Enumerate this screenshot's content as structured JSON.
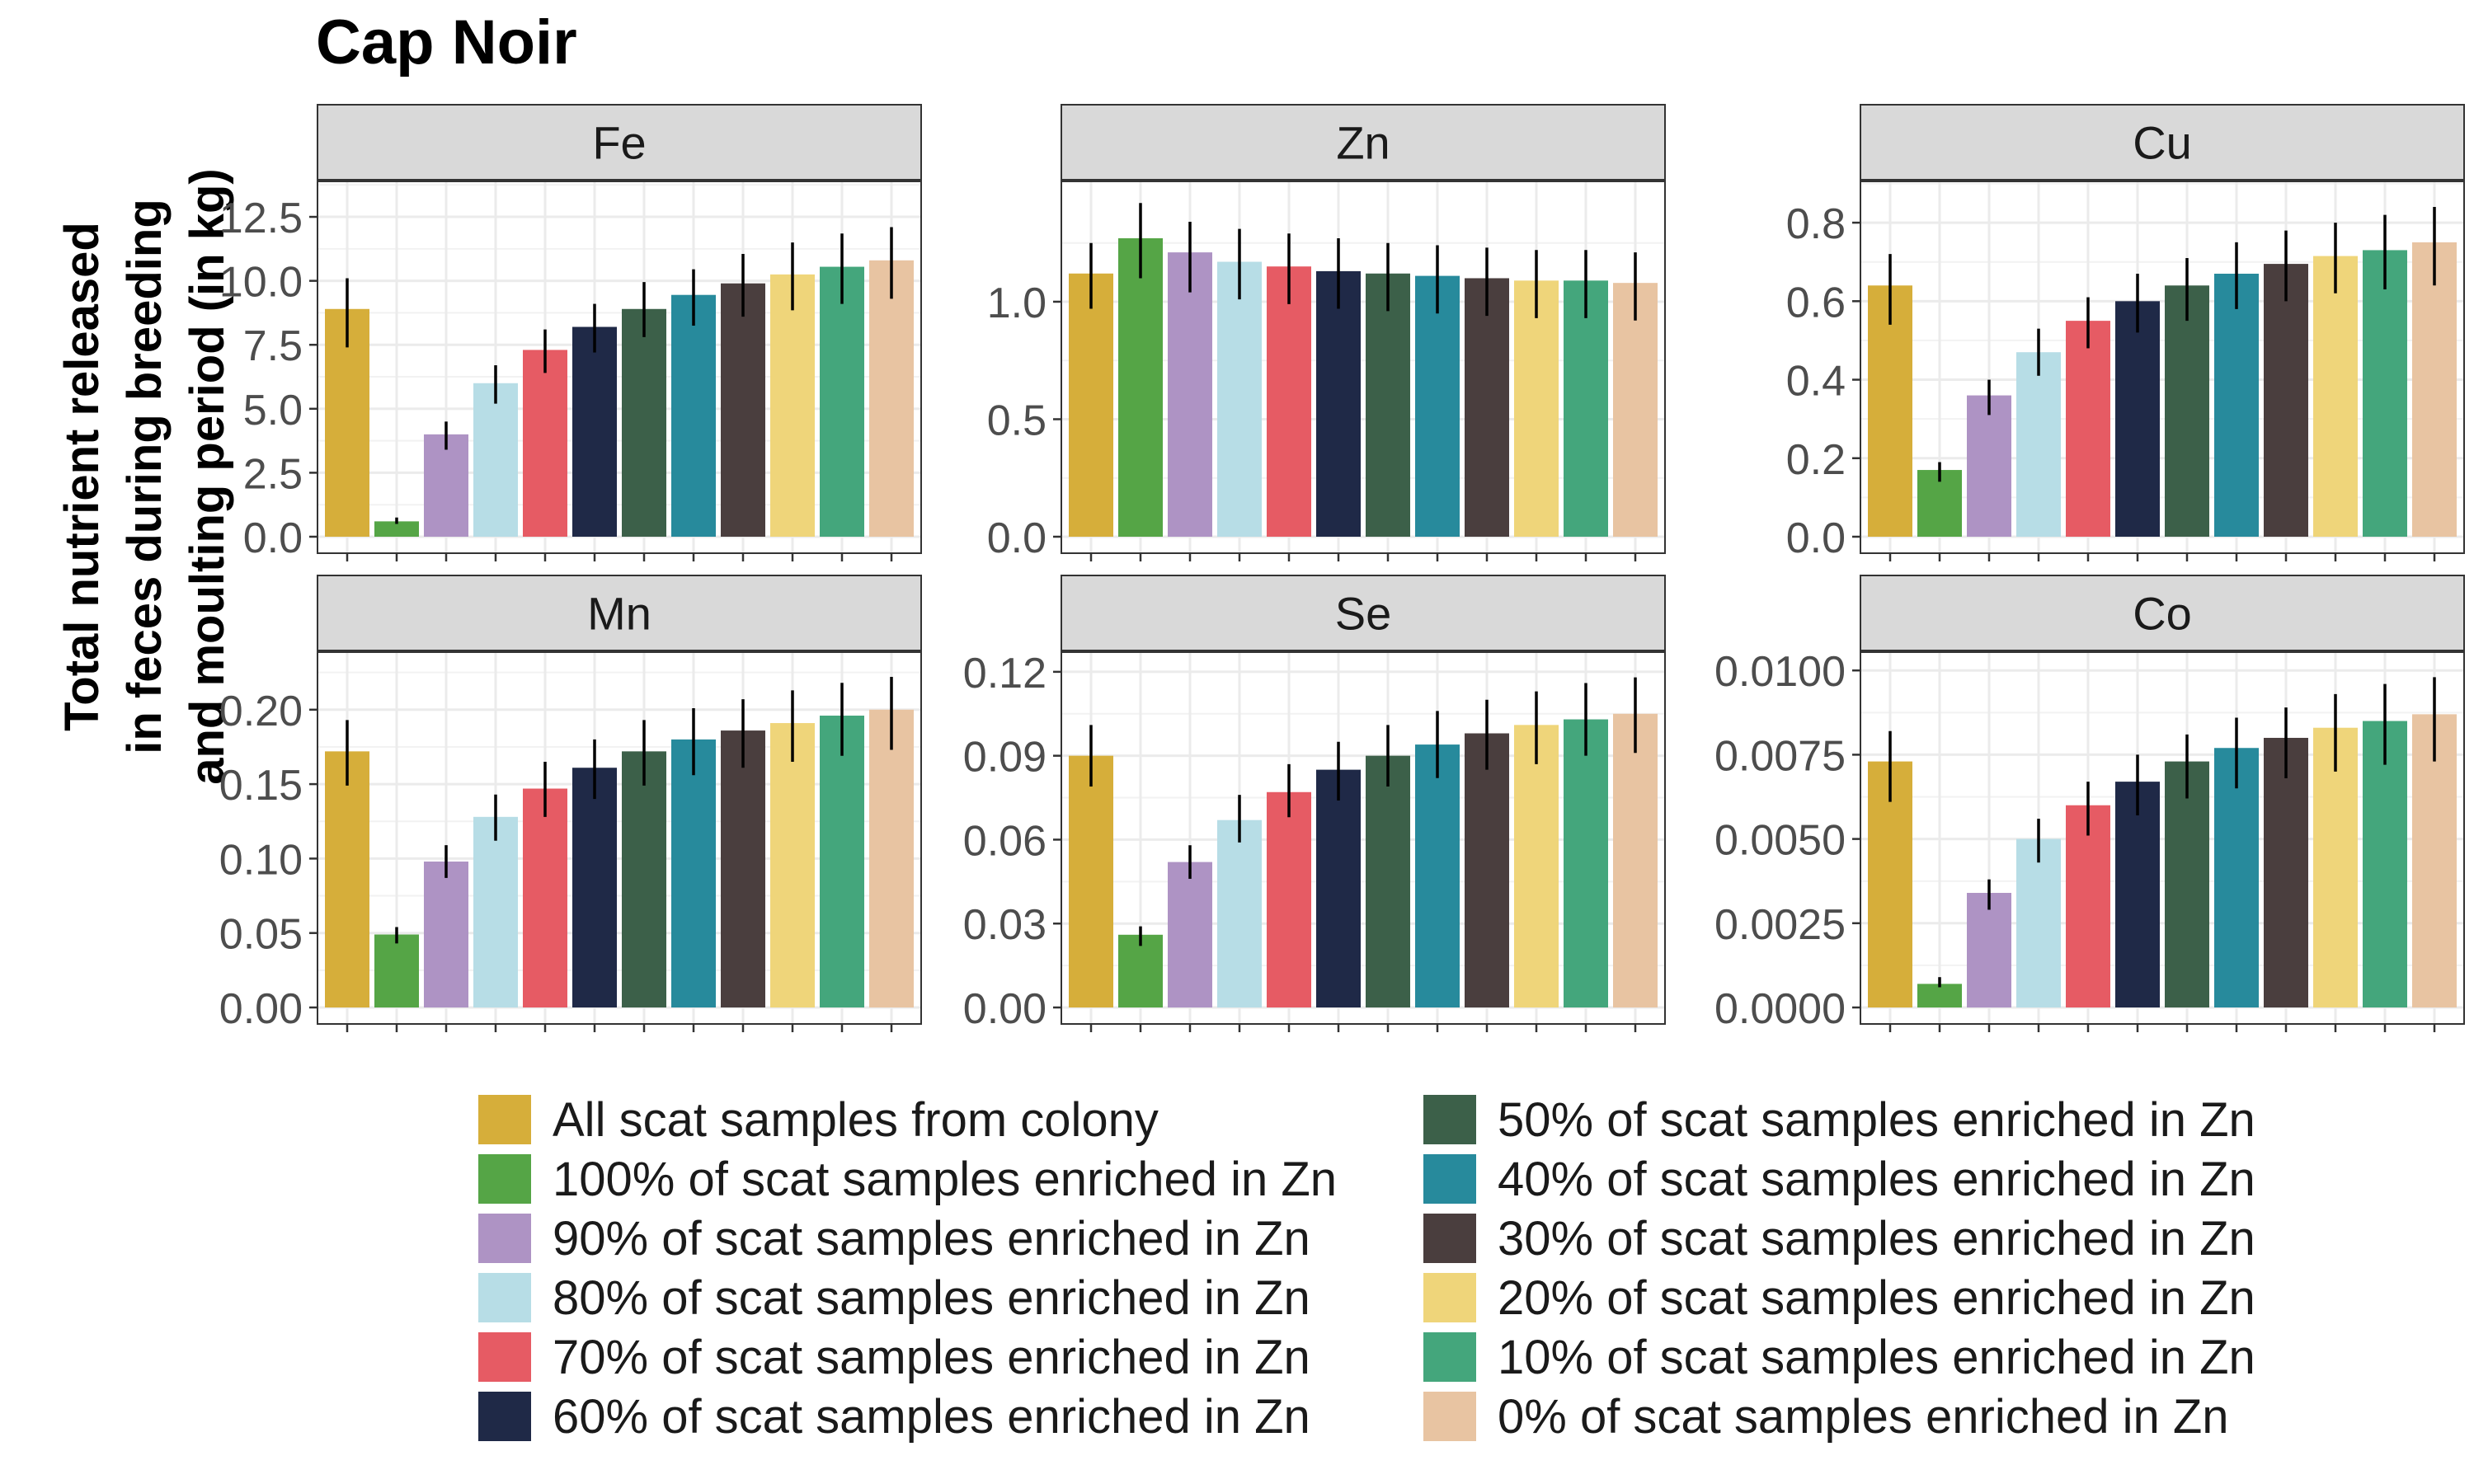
{
  "title": "Cap Noir",
  "ylabel": [
    "Total nutrient released",
    "in feces during breeding",
    "and moulting period (in kg)"
  ],
  "series_colors": [
    "#D6AE3A",
    "#55A546",
    "#AE93C4",
    "#B7DDE6",
    "#E65B64",
    "#1F2947",
    "#3C6049",
    "#278A9C",
    "#4A3E3E",
    "#EFD57A",
    "#44A67C",
    "#E8C4A2"
  ],
  "legend": [
    "All scat samples from colony",
    "100% of scat samples enriched in Zn",
    "90% of scat samples enriched in Zn",
    "80% of scat samples enriched in Zn",
    "70% of scat samples enriched in Zn",
    "60% of scat samples enriched in Zn",
    "50% of scat samples enriched in Zn",
    "40% of scat samples enriched in Zn",
    "30% of scat samples enriched in Zn",
    "20% of scat samples enriched in Zn",
    "10% of scat samples enriched in Zn",
    "0% of scat samples enriched in Zn"
  ],
  "chart_data": [
    {
      "type": "bar",
      "title": "Fe",
      "ylim": [
        0,
        13.5
      ],
      "ticks": [
        "0.0",
        "2.5",
        "5.0",
        "7.5",
        "10.0",
        "12.5"
      ],
      "values": [
        8.9,
        0.6,
        4.0,
        6.0,
        7.3,
        8.2,
        8.9,
        9.45,
        9.9,
        10.25,
        10.55,
        10.8
      ],
      "err_low": [
        7.4,
        0.5,
        3.4,
        5.2,
        6.4,
        7.2,
        7.8,
        8.25,
        8.6,
        8.85,
        9.1,
        9.3
      ],
      "err_high": [
        10.1,
        0.75,
        4.5,
        6.7,
        8.1,
        9.1,
        9.95,
        10.45,
        11.05,
        11.5,
        11.85,
        12.1
      ]
    },
    {
      "type": "bar",
      "title": "Zn",
      "ylim": [
        0,
        1.47
      ],
      "ticks": [
        "0.0",
        "0.5",
        "1.0"
      ],
      "values": [
        1.12,
        1.27,
        1.21,
        1.17,
        1.15,
        1.13,
        1.12,
        1.11,
        1.1,
        1.09,
        1.09,
        1.08
      ],
      "err_low": [
        0.97,
        1.1,
        1.04,
        1.01,
        0.99,
        0.97,
        0.96,
        0.95,
        0.94,
        0.93,
        0.93,
        0.92
      ],
      "err_high": [
        1.25,
        1.42,
        1.34,
        1.31,
        1.29,
        1.27,
        1.25,
        1.24,
        1.23,
        1.22,
        1.22,
        1.21
      ]
    },
    {
      "type": "bar",
      "title": "Cu",
      "ylim": [
        0,
        0.88
      ],
      "ticks": [
        "0.0",
        "0.2",
        "0.4",
        "0.6",
        "0.8"
      ],
      "values": [
        0.64,
        0.17,
        0.36,
        0.47,
        0.55,
        0.6,
        0.64,
        0.67,
        0.695,
        0.715,
        0.73,
        0.75
      ],
      "err_low": [
        0.54,
        0.14,
        0.31,
        0.41,
        0.48,
        0.52,
        0.55,
        0.58,
        0.6,
        0.62,
        0.63,
        0.64
      ],
      "err_high": [
        0.72,
        0.19,
        0.4,
        0.53,
        0.61,
        0.67,
        0.71,
        0.75,
        0.78,
        0.8,
        0.82,
        0.84
      ]
    },
    {
      "type": "bar",
      "title": "Mn",
      "ylim": [
        0,
        0.232
      ],
      "ticks": [
        "0.00",
        "0.05",
        "0.10",
        "0.15",
        "0.20"
      ],
      "values": [
        0.172,
        0.049,
        0.098,
        0.128,
        0.147,
        0.161,
        0.172,
        0.18,
        0.186,
        0.191,
        0.196,
        0.2
      ],
      "err_low": [
        0.149,
        0.043,
        0.087,
        0.112,
        0.128,
        0.14,
        0.149,
        0.156,
        0.161,
        0.165,
        0.169,
        0.173
      ],
      "err_high": [
        0.193,
        0.054,
        0.109,
        0.143,
        0.165,
        0.18,
        0.193,
        0.201,
        0.207,
        0.213,
        0.218,
        0.222
      ]
    },
    {
      "type": "bar",
      "title": "Se",
      "ylim": [
        0,
        0.1235
      ],
      "ticks": [
        "0.00",
        "0.03",
        "0.06",
        "0.09",
        "0.12"
      ],
      "values": [
        0.09,
        0.026,
        0.052,
        0.067,
        0.077,
        0.085,
        0.09,
        0.094,
        0.098,
        0.101,
        0.103,
        0.105
      ],
      "err_low": [
        0.079,
        0.022,
        0.046,
        0.059,
        0.068,
        0.074,
        0.079,
        0.082,
        0.085,
        0.087,
        0.09,
        0.091
      ],
      "err_high": [
        0.101,
        0.029,
        0.058,
        0.076,
        0.087,
        0.095,
        0.101,
        0.106,
        0.11,
        0.113,
        0.116,
        0.118
      ]
    },
    {
      "type": "bar",
      "title": "Co",
      "ylim": [
        0,
        0.01025
      ],
      "ticks": [
        "0.0000",
        "0.0025",
        "0.0050",
        "0.0075",
        "0.0100"
      ],
      "values": [
        0.0073,
        0.0007,
        0.0034,
        0.005,
        0.006,
        0.0067,
        0.0073,
        0.0077,
        0.008,
        0.0083,
        0.0085,
        0.0087
      ],
      "err_low": [
        0.0061,
        0.0006,
        0.0029,
        0.0043,
        0.0051,
        0.0057,
        0.0062,
        0.0065,
        0.0068,
        0.007,
        0.0072,
        0.0073
      ],
      "err_high": [
        0.0082,
        0.0009,
        0.0038,
        0.0056,
        0.0067,
        0.0075,
        0.0081,
        0.0086,
        0.0089,
        0.0093,
        0.0096,
        0.0098
      ]
    }
  ]
}
